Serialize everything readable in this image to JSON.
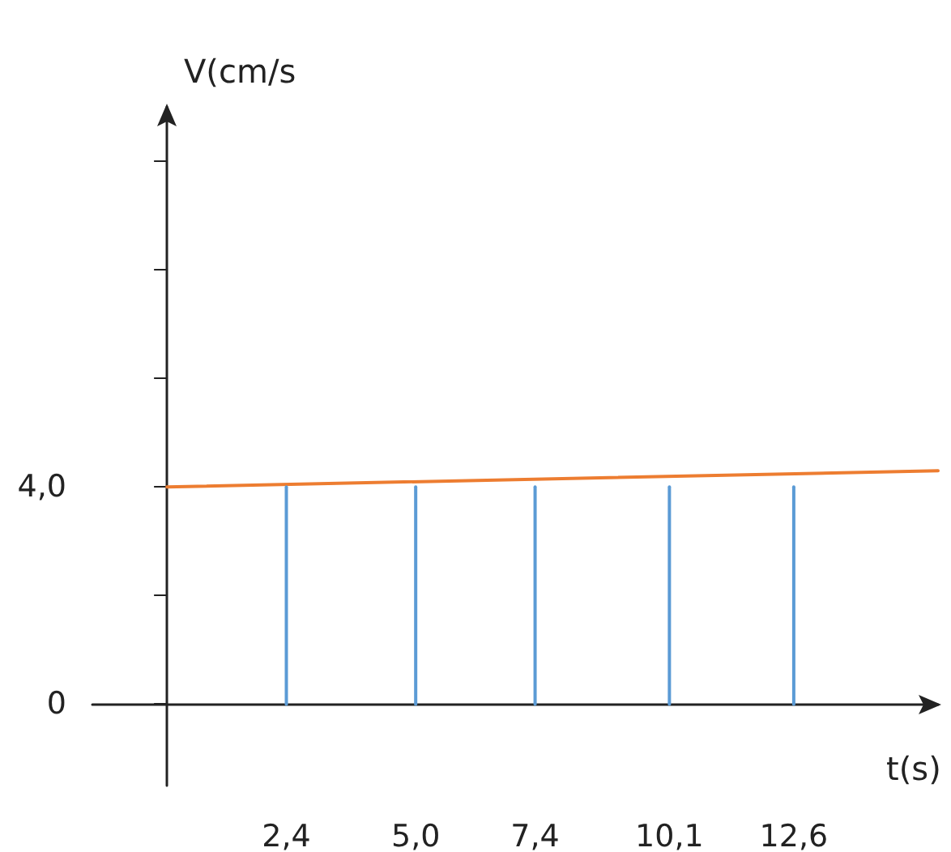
{
  "chart_data": {
    "type": "line",
    "xlabel": "t(s)",
    "ylabel": "V(cm/s",
    "xlim": [
      -1.5,
      15.5
    ],
    "ylim": [
      -1.5,
      11
    ],
    "xticks": [
      {
        "value": 2.4,
        "label": "2,4"
      },
      {
        "value": 5,
        "label": "5,0"
      },
      {
        "value": 7.4,
        "label": "7,4"
      },
      {
        "value": 10.1,
        "label": "10,1"
      },
      {
        "value": 12.6,
        "label": "12,6"
      }
    ],
    "yticks": [
      {
        "value": 0,
        "label": "0"
      },
      {
        "value": 2,
        "label": null
      },
      {
        "value": 4,
        "label": "4,0"
      },
      {
        "value": 6,
        "label": null
      },
      {
        "value": 8,
        "label": null
      },
      {
        "value": 10,
        "label": null
      }
    ],
    "series": [
      {
        "color": "#ed7d31",
        "x": [
          0,
          15.5
        ],
        "values": [
          4.0,
          4.3
        ]
      },
      {
        "color": "#5b9bd5",
        "x": [
          2.4,
          2.4
        ],
        "values": [
          0,
          4
        ]
      },
      {
        "color": "#5b9bd5",
        "x": [
          5,
          5
        ],
        "values": [
          0,
          4
        ]
      },
      {
        "color": "#5b9bd5",
        "x": [
          7.4,
          7.4
        ],
        "values": [
          0,
          4
        ]
      },
      {
        "color": "#5b9bd5",
        "x": [
          10.1,
          10.1
        ],
        "values": [
          0,
          4
        ]
      },
      {
        "color": "#5b9bd5",
        "x": [
          12.6,
          12.6
        ],
        "values": [
          0,
          4
        ]
      }
    ],
    "marker": "none"
  }
}
